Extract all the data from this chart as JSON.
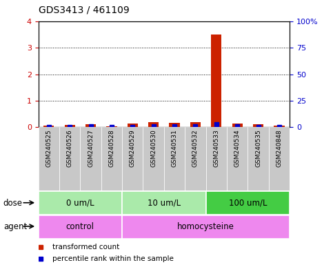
{
  "title": "GDS3413 / 461109",
  "samples": [
    "GSM240525",
    "GSM240526",
    "GSM240527",
    "GSM240528",
    "GSM240529",
    "GSM240530",
    "GSM240531",
    "GSM240532",
    "GSM240533",
    "GSM240534",
    "GSM240535",
    "GSM240848"
  ],
  "transformed_count": [
    0.05,
    0.08,
    0.12,
    0.04,
    0.15,
    0.18,
    0.17,
    0.18,
    3.5,
    0.13,
    0.12,
    0.07
  ],
  "percentile_rank": [
    0.05,
    0.42,
    0.85,
    0.22,
    0.28,
    1.15,
    1.08,
    1.1,
    2.85,
    0.78,
    0.2,
    0.48
  ],
  "ylim_left": [
    0,
    4
  ],
  "ylim_right": [
    0,
    100
  ],
  "yticks_left": [
    0,
    1,
    2,
    3,
    4
  ],
  "yticks_right": [
    0,
    25,
    50,
    75,
    100
  ],
  "bar_color": "#cc2200",
  "dot_color": "#0000cc",
  "plot_bg": "#ffffff",
  "sample_band_colors": [
    "#cccccc",
    "#dddddd"
  ],
  "dose_groups": [
    {
      "label": "0 um/L",
      "start": 0,
      "end": 4,
      "color": "#aaeaaa"
    },
    {
      "label": "10 um/L",
      "start": 4,
      "end": 8,
      "color": "#aaeaaa"
    },
    {
      "label": "100 um/L",
      "start": 8,
      "end": 12,
      "color": "#44cc44"
    }
  ],
  "agent_groups": [
    {
      "label": "control",
      "start": 0,
      "end": 4,
      "color": "#ee88ee"
    },
    {
      "label": "homocysteine",
      "start": 4,
      "end": 12,
      "color": "#ee88ee"
    }
  ],
  "legend_items": [
    {
      "label": "transformed count",
      "color": "#cc2200"
    },
    {
      "label": "percentile rank within the sample",
      "color": "#0000cc"
    }
  ],
  "left_label_color": "#cc0000",
  "right_label_color": "#0000cc"
}
